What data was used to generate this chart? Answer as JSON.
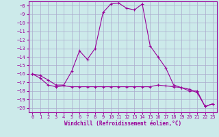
{
  "xlabel": "Windchill (Refroidissement éolien,°C)",
  "background_color": "#cceaea",
  "grid_color": "#aaaacc",
  "line_color": "#990099",
  "xlim": [
    -0.5,
    23.5
  ],
  "ylim": [
    -20.5,
    -7.5
  ],
  "yticks": [
    -8,
    -9,
    -10,
    -11,
    -12,
    -13,
    -14,
    -15,
    -16,
    -17,
    -18,
    -19,
    -20
  ],
  "xticks": [
    0,
    1,
    2,
    3,
    4,
    5,
    6,
    7,
    8,
    9,
    10,
    11,
    12,
    13,
    14,
    15,
    16,
    17,
    18,
    19,
    20,
    21,
    22,
    23
  ],
  "line1_x": [
    0,
    1,
    2,
    3,
    4,
    5,
    6,
    7,
    8,
    9,
    10,
    11,
    12,
    13,
    14,
    15,
    16,
    17,
    18,
    19,
    20,
    21,
    22,
    23
  ],
  "line1_y": [
    -16.0,
    -16.2,
    -16.7,
    -17.3,
    -17.3,
    -15.7,
    -13.3,
    -14.3,
    -13.0,
    -8.8,
    -7.8,
    -7.7,
    -8.3,
    -8.5,
    -7.8,
    -12.7,
    -14.0,
    -15.3,
    -17.3,
    -17.6,
    -17.8,
    -18.2,
    -19.8,
    -19.5
  ],
  "line2_x": [
    0,
    1,
    2,
    3,
    4,
    5,
    6,
    7,
    8,
    9,
    10,
    11,
    12,
    13,
    14,
    15,
    16,
    17,
    18,
    19,
    20,
    21,
    22,
    23
  ],
  "line2_y": [
    -16.0,
    -16.5,
    -17.3,
    -17.5,
    -17.4,
    -17.5,
    -17.5,
    -17.5,
    -17.5,
    -17.5,
    -17.5,
    -17.5,
    -17.5,
    -17.5,
    -17.5,
    -17.5,
    -17.3,
    -17.4,
    -17.5,
    -17.6,
    -18.0,
    -18.0,
    -19.8,
    -19.5
  ],
  "tick_fontsize": 5.0,
  "xlabel_fontsize": 5.5
}
